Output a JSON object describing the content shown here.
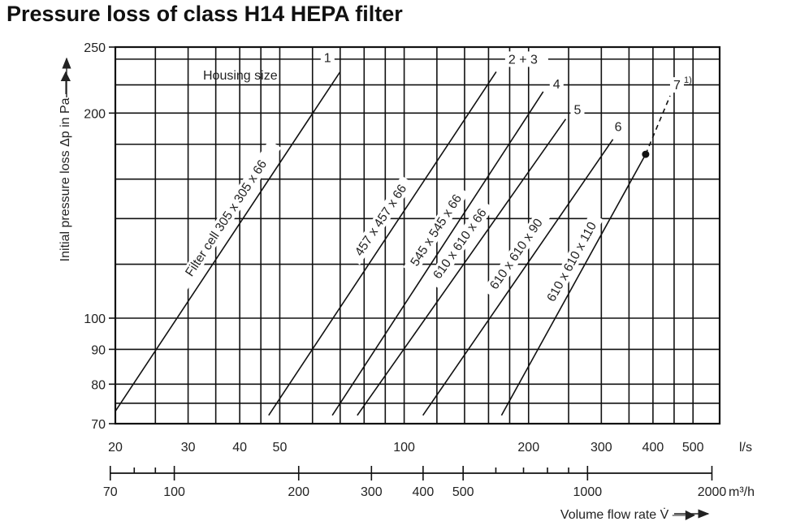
{
  "title": "Pressure loss of class H14 HEPA filter",
  "chart_data": {
    "type": "line",
    "title": "Pressure loss of class H14 HEPA filter",
    "scale": "log-log",
    "grid": true,
    "ylabel": "Initial pressure loss Δp in Pa —▶",
    "xlabel": "Volume flow rate V̇ —▶",
    "x_unit": "l/s",
    "x2_unit": "m³/h",
    "xlim": [
      20,
      580
    ],
    "ylim": [
      70,
      250
    ],
    "x_ticks": [
      20,
      30,
      40,
      50,
      100,
      200,
      300,
      400,
      500
    ],
    "x_tick_labels": [
      "20",
      "30",
      "40",
      "50",
      "100",
      "200",
      "300",
      "400",
      "500"
    ],
    "x2_ticks": [
      70,
      100,
      200,
      300,
      400,
      500,
      1000,
      2000
    ],
    "x2_tick_labels": [
      "70",
      "100",
      "200",
      "300",
      "400",
      "500",
      "1000",
      "2000"
    ],
    "y_ticks": [
      70,
      80,
      90,
      100,
      200,
      250
    ],
    "y_tick_labels": [
      "70",
      "80",
      "90",
      "100",
      "200",
      "250"
    ],
    "x_grid": [
      20,
      25,
      30,
      35,
      40,
      45,
      50,
      60,
      70,
      80,
      90,
      100,
      120,
      140,
      160,
      180,
      200,
      250,
      300,
      350,
      400,
      450,
      500,
      580
    ],
    "y_grid": [
      70,
      75,
      80,
      90,
      100,
      120,
      140,
      160,
      180,
      200,
      220,
      240,
      250
    ],
    "housing_label": "Housing size",
    "series": [
      {
        "name": "1",
        "cell": "Filter cell 305 x 305 x 66",
        "x": [
          20,
          70
        ],
        "y": [
          73,
          230
        ]
      },
      {
        "name": "2 + 3",
        "cell": "457 x 457 x 66",
        "x": [
          47,
          167
        ],
        "y": [
          72,
          230
        ]
      },
      {
        "name": "4",
        "cell": "545 x 545 x 66",
        "x": [
          67,
          217
        ],
        "y": [
          72,
          215
        ]
      },
      {
        "name": "5",
        "cell": "610 x 610 x 66",
        "x": [
          77,
          246
        ],
        "y": [
          72,
          196
        ]
      },
      {
        "name": "6",
        "cell": "610 x 610 x 90",
        "x": [
          111,
          320
        ],
        "y": [
          72,
          183
        ]
      },
      {
        "name": "7",
        "footnote": "1)",
        "cell": "610 x 610 x 110",
        "x": [
          172,
          384
        ],
        "y": [
          72,
          174
        ],
        "extension_x": [
          384,
          440
        ],
        "extension_y": [
          174,
          212
        ],
        "marker": {
          "x": 384,
          "y": 174
        }
      }
    ]
  }
}
